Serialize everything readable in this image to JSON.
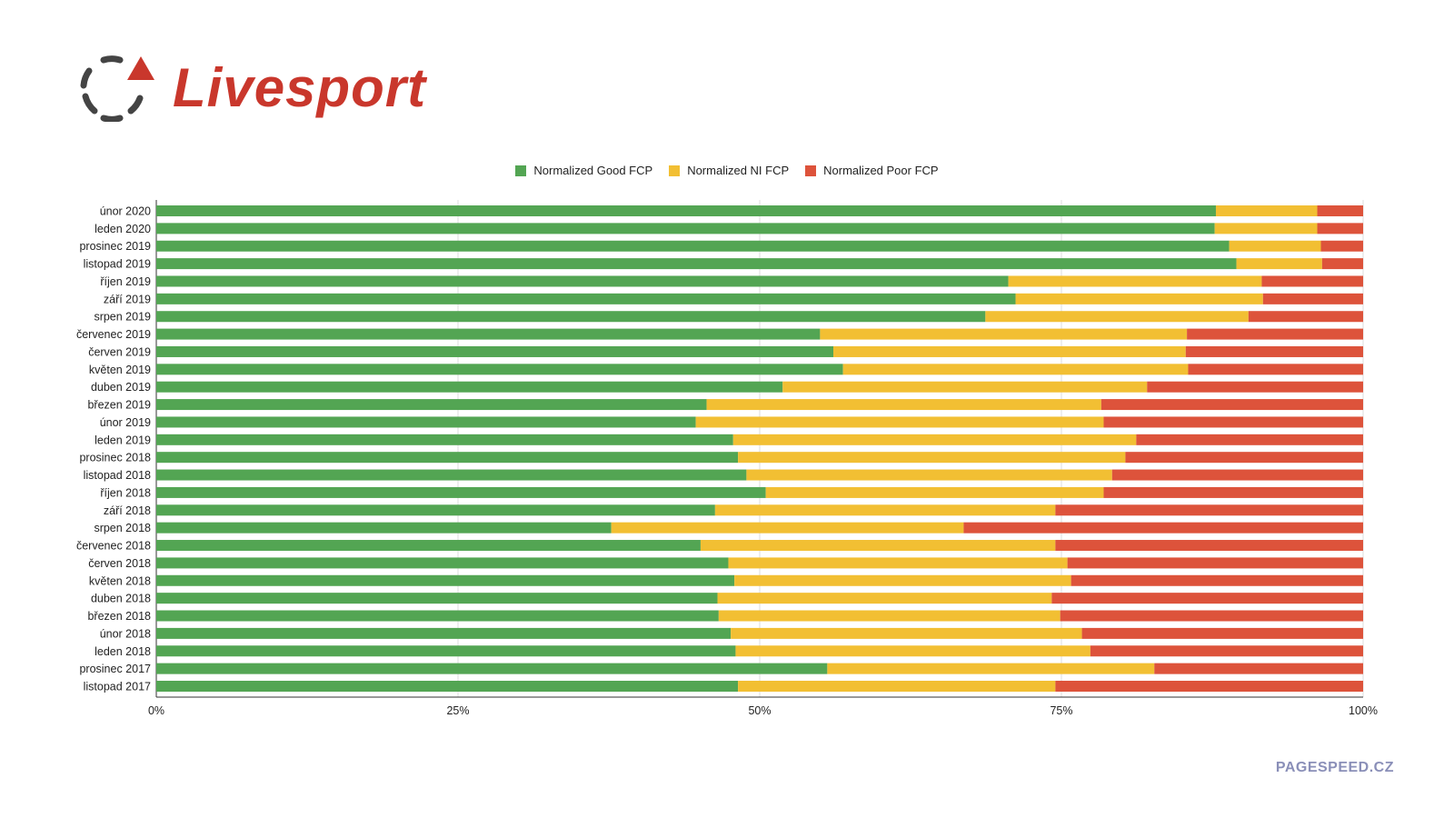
{
  "logo": {
    "text": "Livesport"
  },
  "watermark": "PAGESPEED.CZ",
  "chart_data": {
    "type": "bar",
    "orientation": "horizontal",
    "stacked": "percent",
    "title": "",
    "xlabel": "",
    "ylabel": "",
    "xlim": [
      0,
      100
    ],
    "x_ticks": [
      "0%",
      "25%",
      "50%",
      "75%",
      "100%"
    ],
    "grid": true,
    "legend_position": "top",
    "categories": [
      "únor 2020",
      "leden 2020",
      "prosinec 2019",
      "listopad 2019",
      "říjen 2019",
      "září 2019",
      "srpen 2019",
      "červenec 2019",
      "červen 2019",
      "květen 2019",
      "duben 2019",
      "březen 2019",
      "únor 2019",
      "leden 2019",
      "prosinec 2018",
      "listopad 2018",
      "říjen 2018",
      "září 2018",
      "srpen 2018",
      "červenec 2018",
      "červen 2018",
      "květen 2018",
      "duben 2018",
      "březen 2018",
      "únor 2018",
      "leden 2018",
      "prosinec 2017",
      "listopad 2017"
    ],
    "series": [
      {
        "name": "Normalized Good FCP",
        "color": "#53a553",
        "values": [
          87.8,
          87.7,
          88.9,
          89.5,
          70.6,
          71.2,
          68.7,
          55.0,
          56.1,
          56.9,
          51.9,
          45.6,
          44.7,
          47.8,
          48.2,
          48.9,
          50.5,
          46.3,
          37.7,
          45.1,
          47.4,
          47.9,
          46.5,
          46.6,
          47.6,
          48.0,
          55.6,
          48.2
        ]
      },
      {
        "name": "Normalized NI FCP",
        "color": "#f2bf33",
        "values": [
          8.4,
          8.5,
          7.6,
          7.1,
          21.0,
          20.5,
          21.8,
          30.4,
          29.2,
          28.6,
          30.2,
          32.7,
          33.8,
          33.4,
          32.1,
          30.3,
          28.0,
          28.2,
          29.2,
          29.4,
          28.1,
          27.9,
          27.7,
          28.3,
          29.1,
          29.4,
          27.1,
          26.3
        ]
      },
      {
        "name": "Normalized Poor FCP",
        "color": "#dd533b",
        "values": [
          3.8,
          3.8,
          3.5,
          3.4,
          8.4,
          8.3,
          9.5,
          14.6,
          14.7,
          14.5,
          17.9,
          21.7,
          21.5,
          18.8,
          19.7,
          20.8,
          21.5,
          25.5,
          33.1,
          25.5,
          24.5,
          24.2,
          25.8,
          25.1,
          23.3,
          22.6,
          17.3,
          25.5
        ]
      }
    ]
  }
}
